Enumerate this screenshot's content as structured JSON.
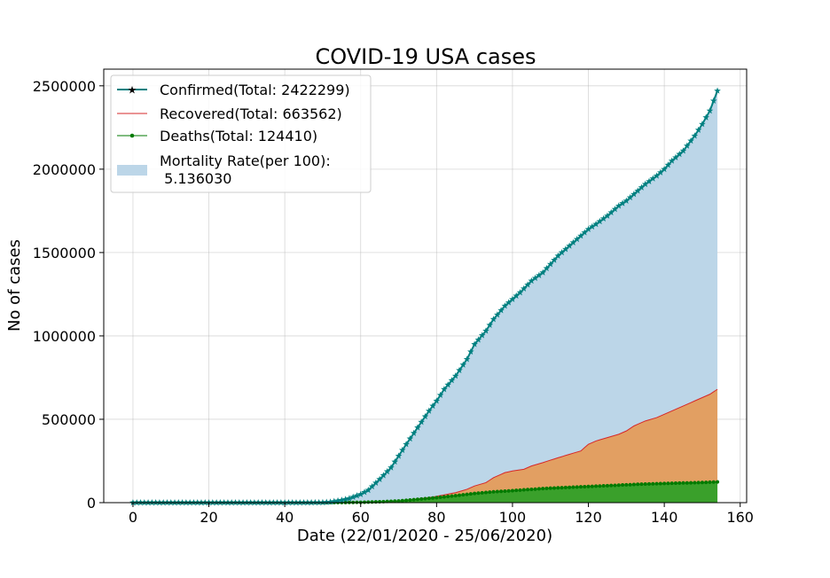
{
  "chart_data": {
    "type": "area",
    "title": "COVID-19 USA cases",
    "xlabel": "Date (22/01/2020 - 25/06/2020)",
    "ylabel": "No of cases",
    "xlim": [
      -7.7,
      161.7
    ],
    "ylim": [
      0,
      2600000
    ],
    "x_ticks": [
      0,
      20,
      40,
      60,
      80,
      100,
      120,
      140,
      160
    ],
    "y_ticks": [
      0,
      500000,
      1000000,
      1500000,
      2000000,
      2500000
    ],
    "x_tick_labels": [
      "0",
      "20",
      "40",
      "60",
      "80",
      "100",
      "120",
      "140",
      "160"
    ],
    "y_tick_labels": [
      "0",
      "500000",
      "1000000",
      "1500000",
      "2000000",
      "2500000"
    ],
    "grid": true,
    "legend_position": "top-left",
    "colors": {
      "confirmed_line": "#008080",
      "confirmed_fill": "#bcd6e8",
      "recovered_line": "#d62728",
      "recovered_fill": "#e29f62",
      "deaths_line": "#007a00",
      "deaths_fill": "#3aa02b"
    },
    "series": [
      {
        "name": "Confirmed(Total: 2422299)",
        "key": "confirmed",
        "marker": "star",
        "anchors": [
          [
            0,
            1
          ],
          [
            10,
            12
          ],
          [
            20,
            15
          ],
          [
            30,
            16
          ],
          [
            40,
            70
          ],
          [
            45,
            200
          ],
          [
            50,
            1000
          ],
          [
            52,
            4000
          ],
          [
            55,
            15000
          ],
          [
            57,
            25000
          ],
          [
            60,
            50000
          ],
          [
            62,
            75000
          ],
          [
            65,
            140000
          ],
          [
            68,
            210000
          ],
          [
            70,
            280000
          ],
          [
            72,
            350000
          ],
          [
            75,
            450000
          ],
          [
            78,
            550000
          ],
          [
            80,
            610000
          ],
          [
            82,
            680000
          ],
          [
            85,
            760000
          ],
          [
            88,
            860000
          ],
          [
            90,
            950000
          ],
          [
            93,
            1030000
          ],
          [
            95,
            1100000
          ],
          [
            98,
            1180000
          ],
          [
            100,
            1220000
          ],
          [
            102,
            1260000
          ],
          [
            105,
            1330000
          ],
          [
            108,
            1380000
          ],
          [
            110,
            1430000
          ],
          [
            112,
            1480000
          ],
          [
            115,
            1540000
          ],
          [
            118,
            1600000
          ],
          [
            120,
            1640000
          ],
          [
            122,
            1670000
          ],
          [
            125,
            1720000
          ],
          [
            128,
            1780000
          ],
          [
            130,
            1810000
          ],
          [
            132,
            1850000
          ],
          [
            135,
            1910000
          ],
          [
            138,
            1960000
          ],
          [
            140,
            2000000
          ],
          [
            142,
            2050000
          ],
          [
            145,
            2110000
          ],
          [
            148,
            2200000
          ],
          [
            150,
            2270000
          ],
          [
            152,
            2350000
          ],
          [
            154,
            2470000
          ]
        ]
      },
      {
        "name": "Recovered(Total: 663562)",
        "key": "recovered",
        "marker": "none",
        "anchors": [
          [
            0,
            0
          ],
          [
            60,
            0
          ],
          [
            65,
            1500
          ],
          [
            68,
            5000
          ],
          [
            70,
            10000
          ],
          [
            72,
            15000
          ],
          [
            75,
            22000
          ],
          [
            78,
            30000
          ],
          [
            80,
            38000
          ],
          [
            85,
            60000
          ],
          [
            88,
            80000
          ],
          [
            90,
            100000
          ],
          [
            93,
            120000
          ],
          [
            95,
            150000
          ],
          [
            98,
            180000
          ],
          [
            100,
            190000
          ],
          [
            103,
            200000
          ],
          [
            105,
            220000
          ],
          [
            108,
            240000
          ],
          [
            110,
            255000
          ],
          [
            115,
            290000
          ],
          [
            118,
            310000
          ],
          [
            119,
            330000
          ],
          [
            120,
            350000
          ],
          [
            122,
            370000
          ],
          [
            125,
            390000
          ],
          [
            128,
            410000
          ],
          [
            130,
            430000
          ],
          [
            132,
            460000
          ],
          [
            135,
            490000
          ],
          [
            138,
            510000
          ],
          [
            140,
            530000
          ],
          [
            142,
            550000
          ],
          [
            145,
            580000
          ],
          [
            148,
            610000
          ],
          [
            150,
            630000
          ],
          [
            152,
            650000
          ],
          [
            154,
            680000
          ]
        ]
      },
      {
        "name": "Deaths(Total: 124410)",
        "key": "deaths",
        "marker": "dot",
        "anchors": [
          [
            0,
            0
          ],
          [
            45,
            0
          ],
          [
            55,
            500
          ],
          [
            60,
            2000
          ],
          [
            65,
            5000
          ],
          [
            70,
            10000
          ],
          [
            75,
            20000
          ],
          [
            80,
            30000
          ],
          [
            85,
            42000
          ],
          [
            90,
            55000
          ],
          [
            95,
            65000
          ],
          [
            100,
            72000
          ],
          [
            105,
            80000
          ],
          [
            110,
            87000
          ],
          [
            115,
            92000
          ],
          [
            120,
            97000
          ],
          [
            125,
            102000
          ],
          [
            130,
            107000
          ],
          [
            135,
            112000
          ],
          [
            140,
            115000
          ],
          [
            145,
            118000
          ],
          [
            150,
            121000
          ],
          [
            154,
            124410
          ]
        ]
      }
    ],
    "mortality_label": "Mortality Rate(per 100):",
    "mortality_value": " 5.136030"
  }
}
